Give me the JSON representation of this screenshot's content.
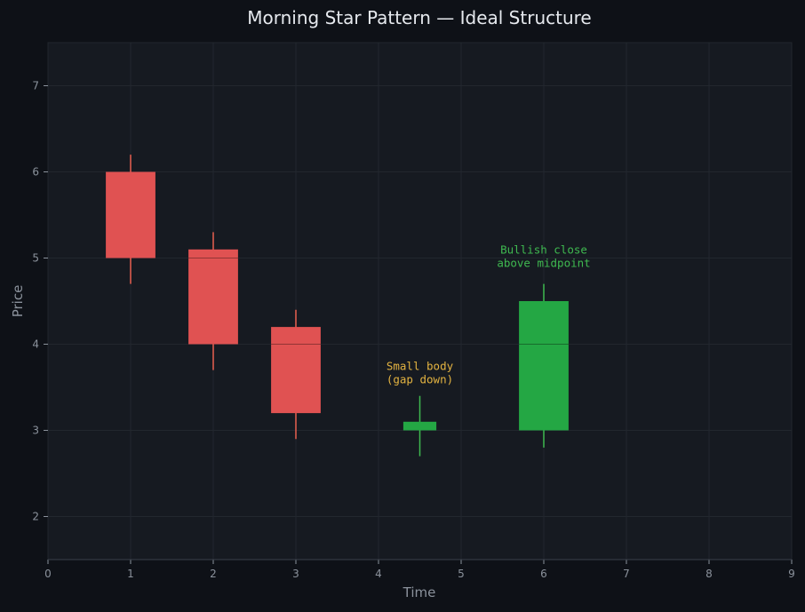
{
  "chart_data": {
    "type": "candlestick",
    "title": "Morning Star Pattern — Ideal Structure",
    "xlabel": "Time",
    "ylabel": "Price",
    "xlim": [
      0,
      9
    ],
    "ylim": [
      1.5,
      7.5
    ],
    "xticks": [
      "0",
      "1",
      "2",
      "3",
      "4",
      "5",
      "6",
      "7",
      "8",
      "9"
    ],
    "yticks": [
      "2",
      "3",
      "4",
      "5",
      "6",
      "7"
    ],
    "grid": true,
    "candles": [
      {
        "x": 1,
        "open": 6.0,
        "high": 6.2,
        "low": 4.7,
        "close": 5.0,
        "width": 0.6,
        "direction": "bearish"
      },
      {
        "x": 2,
        "open": 5.1,
        "high": 5.3,
        "low": 3.7,
        "close": 4.0,
        "width": 0.6,
        "direction": "bearish"
      },
      {
        "x": 3,
        "open": 4.2,
        "high": 4.4,
        "low": 2.9,
        "close": 3.2,
        "width": 0.6,
        "direction": "bearish"
      },
      {
        "x": 4.5,
        "open": 3.0,
        "high": 3.4,
        "low": 2.7,
        "close": 3.1,
        "width": 0.4,
        "direction": "bullish"
      },
      {
        "x": 6,
        "open": 3.0,
        "high": 4.7,
        "low": 2.8,
        "close": 4.5,
        "width": 0.6,
        "direction": "bullish"
      }
    ],
    "reference_lines": [
      {
        "x": 2,
        "y": 5.0
      },
      {
        "x": 3,
        "y": 4.0
      },
      {
        "x": 6,
        "y": 4.0
      }
    ],
    "annotations": [
      {
        "lines": [
          "Small body",
          "(gap down)"
        ],
        "x": 4.5,
        "y": 3.7,
        "color": "#e3b341"
      },
      {
        "lines": [
          "Bullish close",
          "above midpoint"
        ],
        "x": 6,
        "y": 5.05,
        "color": "#3fb950"
      }
    ],
    "colors": {
      "bearish": "#e05252",
      "bullish": "#24a744",
      "bearish_wick": "#e86050",
      "bullish_wick": "#3fb950",
      "background": "#0e1117",
      "plot_background": "#161a21",
      "grid": "#22272e",
      "text": "#8b929c",
      "title": "#e6e9ee"
    }
  }
}
